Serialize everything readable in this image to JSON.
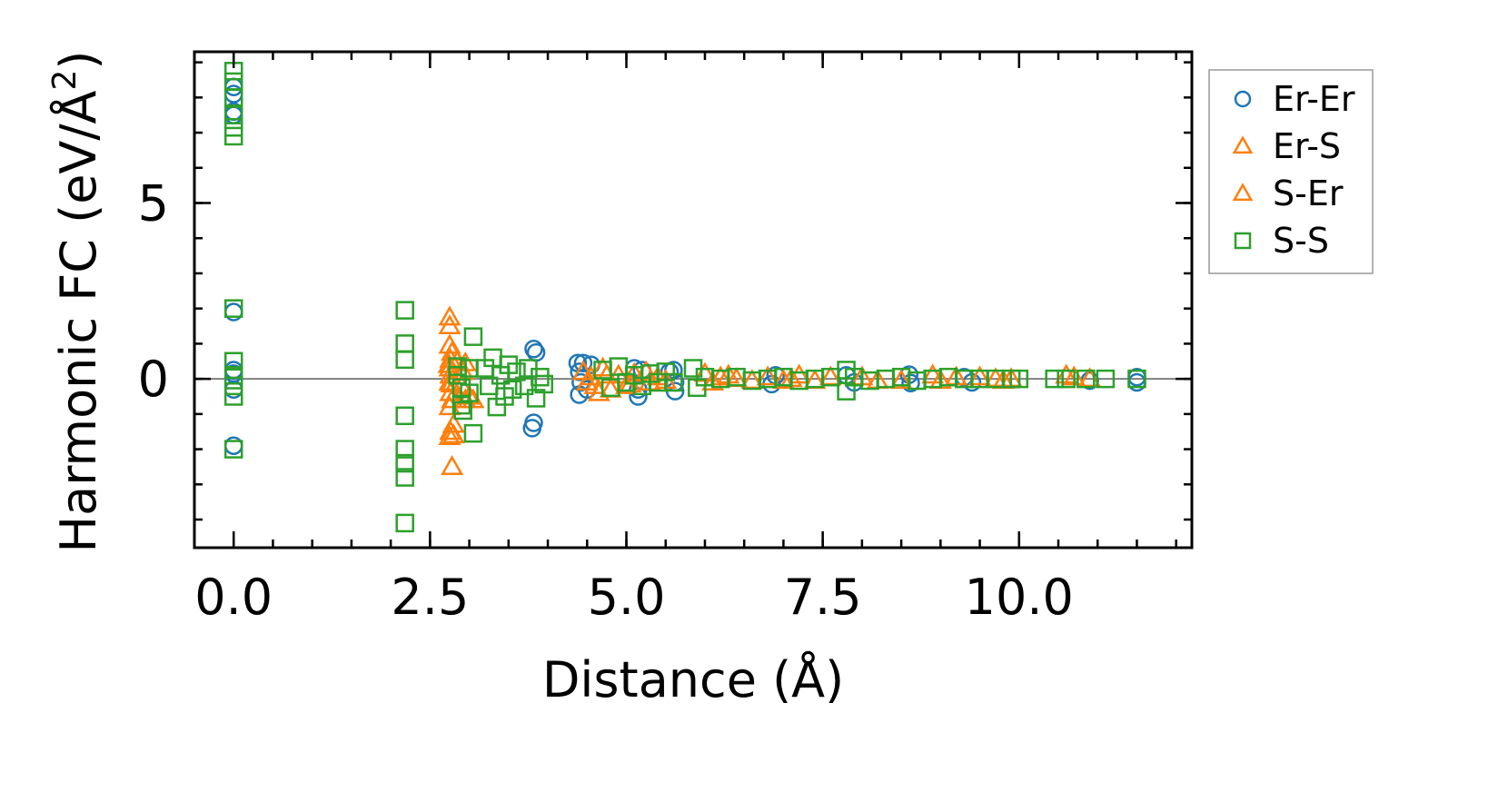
{
  "chart_data": {
    "type": "scatter",
    "title": "",
    "xlabel": "Distance (Å)",
    "ylabel_main": "Harmonic FC (eV/Å",
    "ylabel_sup": "2",
    "ylabel_close": ")",
    "xlim": [
      -0.5,
      12.2
    ],
    "ylim": [
      -4.8,
      9.3
    ],
    "xticks": [
      0.0,
      2.5,
      5.0,
      7.5,
      10.0
    ],
    "xtick_labels": [
      "0.0",
      "2.5",
      "5.0",
      "7.5",
      "10.0"
    ],
    "yticks": [
      0,
      5
    ],
    "ytick_labels": [
      "0",
      "5"
    ],
    "x_minor_step": 0.5,
    "y_minor_step": 1,
    "zero_line": 0,
    "legend_position": "outside-right",
    "series": [
      {
        "name": "Er-Er",
        "marker": "circle",
        "color": "#1f77b4",
        "points": [
          [
            0,
            8.3
          ],
          [
            0,
            8.1
          ],
          [
            0,
            7.6
          ],
          [
            0,
            7.5
          ],
          [
            0,
            1.9
          ],
          [
            0,
            0.25
          ],
          [
            0,
            0.15
          ],
          [
            0,
            -0.3
          ],
          [
            0,
            -1.9
          ],
          [
            3.82,
            0.85
          ],
          [
            3.85,
            0.75
          ],
          [
            3.82,
            -1.25
          ],
          [
            3.8,
            -1.4
          ],
          [
            4.38,
            0.45
          ],
          [
            4.45,
            0.45
          ],
          [
            4.55,
            0.4
          ],
          [
            4.4,
            0.2
          ],
          [
            4.42,
            -0.1
          ],
          [
            4.4,
            -0.45
          ],
          [
            4.5,
            -0.3
          ],
          [
            5.1,
            0.3
          ],
          [
            5.2,
            0.25
          ],
          [
            5.15,
            -0.3
          ],
          [
            5.15,
            -0.5
          ],
          [
            5.55,
            0.2
          ],
          [
            5.6,
            0.25
          ],
          [
            5.62,
            -0.1
          ],
          [
            5.62,
            -0.35
          ],
          [
            6.9,
            0.1
          ],
          [
            6.85,
            -0.15
          ],
          [
            7.8,
            0.1
          ],
          [
            7.9,
            -0.1
          ],
          [
            8.6,
            0.12
          ],
          [
            8.62,
            -0.12
          ],
          [
            9.3,
            0.05
          ],
          [
            9.4,
            -0.1
          ],
          [
            10.9,
            -0.05
          ],
          [
            11.5,
            0.05
          ],
          [
            11.5,
            -0.1
          ]
        ]
      },
      {
        "name": "Er-S",
        "marker": "triangle",
        "color": "#ff7f0e",
        "points": [
          [
            2.75,
            1.75
          ],
          [
            2.75,
            1.5
          ],
          [
            2.75,
            0.95
          ],
          [
            2.78,
            0.75
          ],
          [
            2.75,
            0.3
          ],
          [
            2.76,
            0.1
          ],
          [
            2.75,
            -0.1
          ],
          [
            2.76,
            -0.4
          ],
          [
            2.75,
            -0.8
          ],
          [
            2.76,
            -1.5
          ],
          [
            2.75,
            -1.65
          ],
          [
            2.78,
            -2.5
          ],
          [
            2.85,
            0.5
          ],
          [
            2.95,
            -0.6
          ],
          [
            2.92,
            0.2
          ],
          [
            2.8,
            -1.3
          ],
          [
            3.0,
            -0.5
          ],
          [
            4.45,
            0.2
          ],
          [
            4.55,
            0.05
          ],
          [
            4.6,
            -0.2
          ],
          [
            4.65,
            -0.4
          ],
          [
            4.7,
            0.3
          ],
          [
            4.8,
            -0.3
          ],
          [
            4.9,
            0.1
          ],
          [
            5.0,
            -0.2
          ],
          [
            5.1,
            0.15
          ],
          [
            5.3,
            -0.1
          ],
          [
            5.4,
            0.05
          ],
          [
            6.0,
            0.15
          ],
          [
            6.1,
            -0.1
          ],
          [
            6.2,
            0.05
          ],
          [
            6.4,
            0.0
          ],
          [
            6.8,
            0.05
          ],
          [
            7.0,
            -0.05
          ],
          [
            7.2,
            0.1
          ],
          [
            7.4,
            -0.05
          ],
          [
            8.0,
            0.05
          ],
          [
            8.2,
            -0.05
          ],
          [
            8.9,
            0.1
          ],
          [
            9.0,
            -0.05
          ],
          [
            9.5,
            0.05
          ],
          [
            9.7,
            0.0
          ],
          [
            9.9,
            0.0
          ],
          [
            10.7,
            0.05
          ],
          [
            10.9,
            0.0
          ]
        ]
      },
      {
        "name": "S-Er",
        "marker": "triangle",
        "color": "#ff7f0e",
        "points": [
          [
            2.76,
            0.55
          ],
          [
            2.77,
            -0.15
          ],
          [
            2.78,
            -0.6
          ],
          [
            2.8,
            -1.6
          ],
          [
            2.74,
            0.4
          ],
          [
            2.9,
            -0.2
          ],
          [
            2.95,
            0.45
          ],
          [
            3.05,
            -0.6
          ],
          [
            4.5,
            -0.1
          ],
          [
            4.75,
            0.1
          ],
          [
            5.05,
            -0.15
          ],
          [
            5.25,
            0.2
          ],
          [
            5.5,
            -0.05
          ],
          [
            6.3,
            0.1
          ],
          [
            6.6,
            -0.05
          ],
          [
            7.1,
            0.0
          ],
          [
            7.6,
            0.05
          ],
          [
            8.5,
            -0.05
          ],
          [
            9.2,
            0.05
          ],
          [
            9.8,
            -0.05
          ],
          [
            10.6,
            0.1
          ]
        ]
      },
      {
        "name": "S-S",
        "marker": "square",
        "color": "#2ca02c",
        "points": [
          [
            0,
            8.75
          ],
          [
            0,
            8.45
          ],
          [
            0,
            8.0
          ],
          [
            0,
            7.5
          ],
          [
            0,
            7.15
          ],
          [
            0,
            6.9
          ],
          [
            0,
            2.0
          ],
          [
            0,
            0.5
          ],
          [
            0,
            0.1
          ],
          [
            0,
            -0.2
          ],
          [
            0,
            -0.5
          ],
          [
            0,
            -2.0
          ],
          [
            2.18,
            1.95
          ],
          [
            2.18,
            1.0
          ],
          [
            2.18,
            0.55
          ],
          [
            2.18,
            -1.05
          ],
          [
            2.18,
            -2.0
          ],
          [
            2.18,
            -2.4
          ],
          [
            2.18,
            -2.8
          ],
          [
            2.18,
            -4.1
          ],
          [
            2.85,
            0.35
          ],
          [
            2.85,
            0.1
          ],
          [
            2.9,
            -0.25
          ],
          [
            2.9,
            -0.75
          ],
          [
            2.92,
            -0.9
          ],
          [
            3.05,
            1.2
          ],
          [
            3.05,
            -1.55
          ],
          [
            3.0,
            0.3
          ],
          [
            3.0,
            -0.4
          ],
          [
            3.2,
            0.3
          ],
          [
            3.25,
            -0.2
          ],
          [
            3.3,
            0.6
          ],
          [
            3.35,
            -0.8
          ],
          [
            3.4,
            0.1
          ],
          [
            3.45,
            -0.5
          ],
          [
            3.5,
            0.4
          ],
          [
            3.55,
            -0.3
          ],
          [
            3.6,
            0.2
          ],
          [
            3.7,
            -0.2
          ],
          [
            3.75,
            0.3
          ],
          [
            3.85,
            -0.55
          ],
          [
            3.9,
            0.05
          ],
          [
            3.95,
            -0.15
          ],
          [
            4.7,
            0.25
          ],
          [
            4.8,
            -0.25
          ],
          [
            4.9,
            0.35
          ],
          [
            5.0,
            -0.1
          ],
          [
            5.1,
            0.1
          ],
          [
            5.2,
            -0.2
          ],
          [
            5.3,
            0.15
          ],
          [
            5.4,
            -0.1
          ],
          [
            5.5,
            0.2
          ],
          [
            5.6,
            -0.1
          ],
          [
            5.85,
            0.3
          ],
          [
            5.9,
            -0.25
          ],
          [
            6.0,
            0.05
          ],
          [
            6.2,
            0.0
          ],
          [
            6.4,
            0.05
          ],
          [
            6.6,
            -0.05
          ],
          [
            6.8,
            0.0
          ],
          [
            7.0,
            0.05
          ],
          [
            7.2,
            -0.05
          ],
          [
            7.4,
            0.0
          ],
          [
            7.6,
            0.05
          ],
          [
            7.8,
            0.25
          ],
          [
            7.8,
            -0.35
          ],
          [
            7.9,
            0.05
          ],
          [
            8.1,
            -0.05
          ],
          [
            8.3,
            0.0
          ],
          [
            8.5,
            0.05
          ],
          [
            8.7,
            -0.05
          ],
          [
            8.9,
            0.0
          ],
          [
            9.1,
            0.05
          ],
          [
            9.3,
            0.0
          ],
          [
            9.5,
            0.0
          ],
          [
            9.7,
            0.0
          ],
          [
            9.9,
            0.0
          ],
          [
            10.0,
            0.0
          ],
          [
            10.45,
            0.0
          ],
          [
            10.6,
            0.0
          ],
          [
            10.85,
            0.0
          ],
          [
            11.1,
            0.0
          ],
          [
            11.5,
            0.0
          ]
        ]
      }
    ]
  }
}
